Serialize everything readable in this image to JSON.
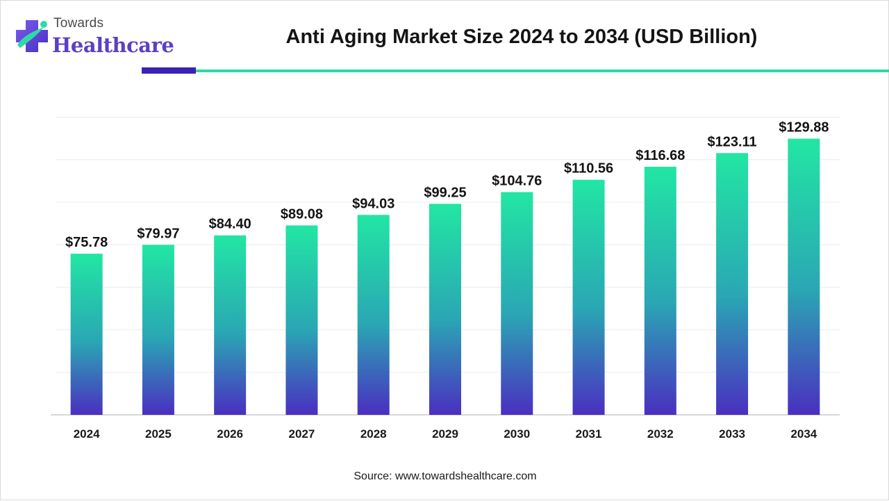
{
  "logo": {
    "line1": "Towards",
    "line2": "Healthcare"
  },
  "header": {
    "title": "Anti Aging Market Size 2024 to 2034 (USD Billion)"
  },
  "footer": {
    "source": "Source: www.towardshealthcare.com"
  },
  "colors": {
    "bar_top": "#22e6a3",
    "bar_mid": "#2aa6b4",
    "bar_bottom": "#4a2fc0",
    "brand_purple": "#5b3fc4",
    "brand_teal": "#2fd9a6"
  },
  "chart_data": {
    "type": "bar",
    "title": "Anti Aging Market Size 2024 to 2034 (USD Billion)",
    "categories": [
      "2024",
      "2025",
      "2026",
      "2027",
      "2028",
      "2029",
      "2030",
      "2031",
      "2032",
      "2033",
      "2034"
    ],
    "values": [
      75.78,
      79.97,
      84.4,
      89.08,
      94.03,
      99.25,
      104.76,
      110.56,
      116.68,
      123.11,
      129.88
    ],
    "data_labels": [
      "$75.78",
      "$79.97",
      "$84.40",
      "$89.08",
      "$94.03",
      "$99.25",
      "$104.76",
      "$110.56",
      "$116.68",
      "$123.11",
      "$129.88"
    ],
    "xlabel": "",
    "ylabel": "",
    "ylim": [
      0,
      140
    ],
    "grid": true,
    "legend": "none"
  }
}
